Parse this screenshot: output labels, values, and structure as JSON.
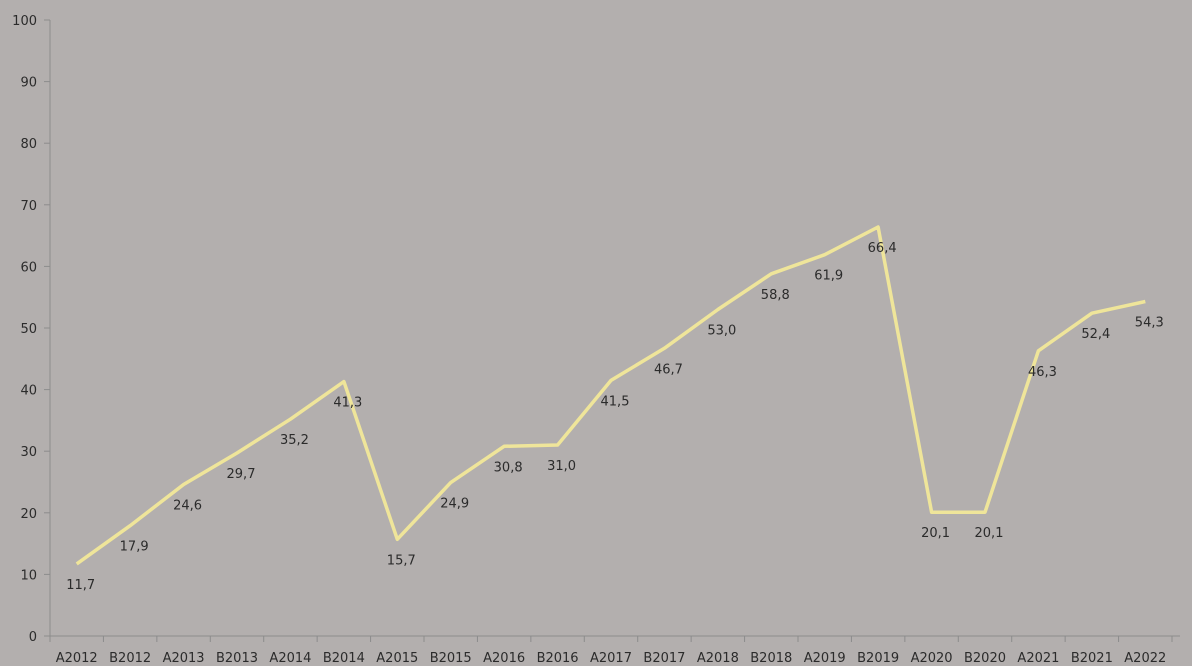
{
  "chart_data": {
    "type": "line",
    "categories": [
      "A2012",
      "B2012",
      "A2013",
      "B2013",
      "A2014",
      "B2014",
      "A2015",
      "B2015",
      "A2016",
      "B2016",
      "A2017",
      "B2017",
      "A2018",
      "B2018",
      "A2019",
      "B2019",
      "A2020",
      "B2020",
      "A2021",
      "B2021",
      "A2022"
    ],
    "series": [
      {
        "values": [
          11.7,
          17.9,
          24.6,
          29.7,
          35.2,
          41.3,
          15.7,
          24.9,
          30.8,
          31.0,
          41.5,
          46.7,
          53.0,
          58.8,
          61.9,
          66.4,
          20.1,
          20.1,
          46.3,
          52.4,
          54.3
        ],
        "labels": [
          "11,7",
          "17,9",
          "24,6",
          "29,7",
          "35,2",
          "41,3",
          "15,7",
          "24,9",
          "30,8",
          "31,0",
          "41,5",
          "46,7",
          "53,0",
          "58,8",
          "61,9",
          "66,4",
          "20,1",
          "20,1",
          "46,3",
          "52,4",
          "54,3"
        ],
        "color": "#efe59a"
      }
    ],
    "y_ticks": [
      "0",
      "10",
      "20",
      "30",
      "40",
      "50",
      "60",
      "70",
      "80",
      "90",
      "100"
    ],
    "title": "",
    "xlabel": "",
    "ylabel": "",
    "ylim": [
      0,
      100
    ],
    "grid": false,
    "legend": "none",
    "background": "#b3afae",
    "axis_color": "#8c8c8c"
  }
}
